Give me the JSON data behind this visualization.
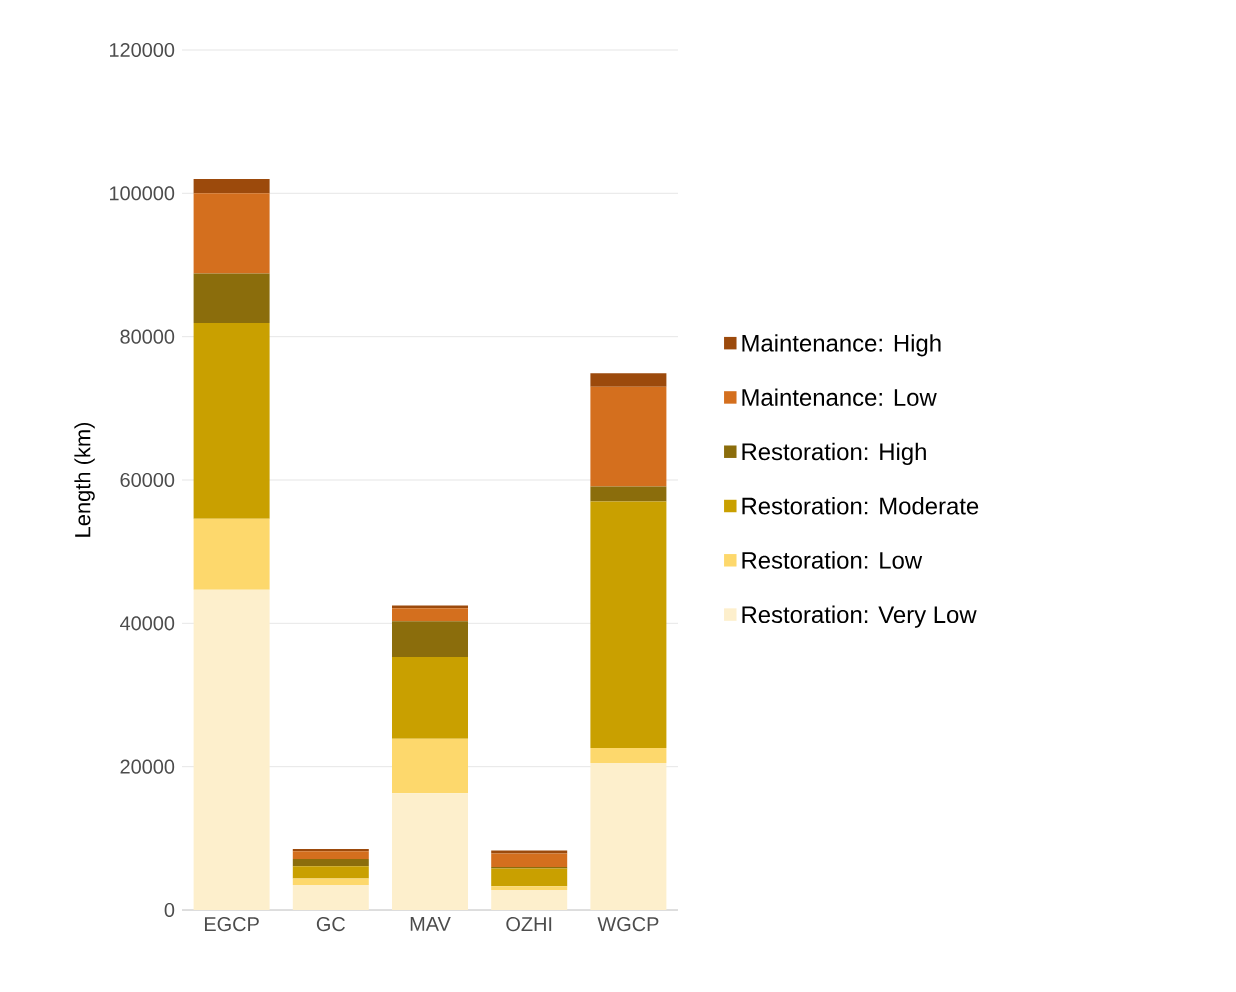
{
  "chart_data": {
    "type": "bar",
    "stacked": true,
    "ylabel": "Length (km)",
    "categories": [
      "EGCP",
      "GC",
      "MAV",
      "OZHI",
      "WGCP"
    ],
    "ylim": [
      0,
      120000
    ],
    "yticks": [
      0,
      20000,
      40000,
      60000,
      80000,
      100000,
      120000
    ],
    "grid": "y",
    "legend": "right",
    "series": [
      {
        "name": "Restoration: Very Low",
        "color": "#fdefcc",
        "values": [
          44700,
          3500,
          16300,
          2800,
          20500
        ]
      },
      {
        "name": "Restoration: Low",
        "color": "#fdd86c",
        "values": [
          9900,
          900,
          7600,
          500,
          2100
        ]
      },
      {
        "name": "Restoration: Moderate",
        "color": "#c9a000",
        "values": [
          27300,
          1700,
          11400,
          2500,
          34400
        ]
      },
      {
        "name": "Restoration: High",
        "color": "#8b6d0c",
        "values": [
          6900,
          1000,
          5000,
          200,
          2100
        ]
      },
      {
        "name": "Maintenance: Low",
        "color": "#d46f1e",
        "values": [
          11200,
          1100,
          1800,
          1900,
          13900
        ]
      },
      {
        "name": "Maintenance: High",
        "color": "#9c4a0c",
        "values": [
          2000,
          300,
          400,
          400,
          1900
        ]
      }
    ]
  }
}
